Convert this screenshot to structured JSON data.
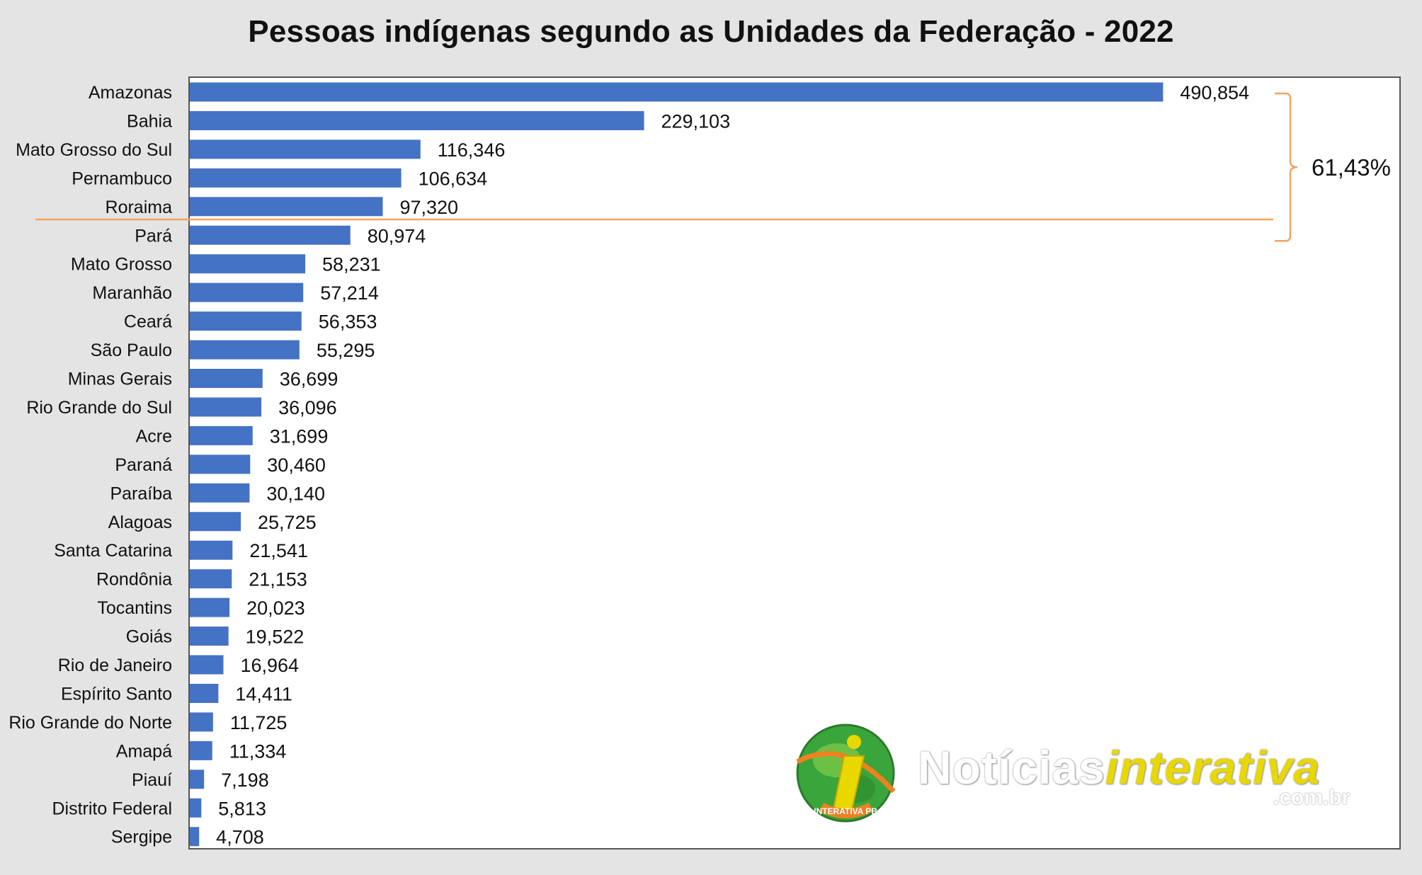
{
  "chart_data": {
    "type": "bar",
    "orientation": "horizontal",
    "title": "Pessoas indígenas segundo as Unidades da Federação - 2022",
    "categories": [
      "Amazonas",
      "Bahia",
      "Mato Grosso do Sul",
      "Pernambuco",
      "Roraima",
      "Pará",
      "Mato Grosso",
      "Maranhão",
      "Ceará",
      "São Paulo",
      "Minas Gerais",
      "Rio Grande do Sul",
      "Acre",
      "Paraná",
      "Paraíba",
      "Alagoas",
      "Santa Catarina",
      "Rondônia",
      "Tocantins",
      "Goiás",
      "Rio de Janeiro",
      "Espírito Santo",
      "Rio Grande do Norte",
      "Amapá",
      "Piauí",
      "Distrito Federal",
      "Sergipe"
    ],
    "values": [
      490854,
      229103,
      116346,
      106634,
      97320,
      80974,
      58231,
      57214,
      56353,
      55295,
      36699,
      36096,
      31699,
      30460,
      30140,
      25725,
      21541,
      21153,
      20023,
      19522,
      16964,
      14411,
      11725,
      11334,
      7198,
      5813,
      4708
    ],
    "value_labels": [
      "490,854",
      "229,103",
      "116,346",
      "106,634",
      "97,320",
      "80,974",
      "58,231",
      "57,214",
      "56,353",
      "55,295",
      "36,699",
      "36,096",
      "31,699",
      "30,460",
      "30,140",
      "25,725",
      "21,541",
      "21,153",
      "20,023",
      "19,522",
      "16,964",
      "14,411",
      "11,725",
      "11,334",
      "7,198",
      "5,813",
      "4,708"
    ],
    "xlim": [
      0,
      600000
    ],
    "grid": false,
    "legend": "none",
    "bar_color": "#4472c4",
    "annotation": {
      "text": "61,43%",
      "bracket_categories": [
        "Amazonas",
        "Bahia",
        "Mato Grosso do Sul",
        "Pernambuco",
        "Roraima",
        "Pará"
      ],
      "separator_after": "Roraima",
      "color": "#f4a460"
    }
  },
  "watermark": {
    "text_main": "Notícias",
    "text_highlight": "interativa",
    "text_sub": ".com.br",
    "badge_text": "INTERATIVA PB",
    "colors": {
      "globe": "#3aa53a",
      "i_letter": "#e8d800",
      "swoosh": "#f08020"
    }
  }
}
